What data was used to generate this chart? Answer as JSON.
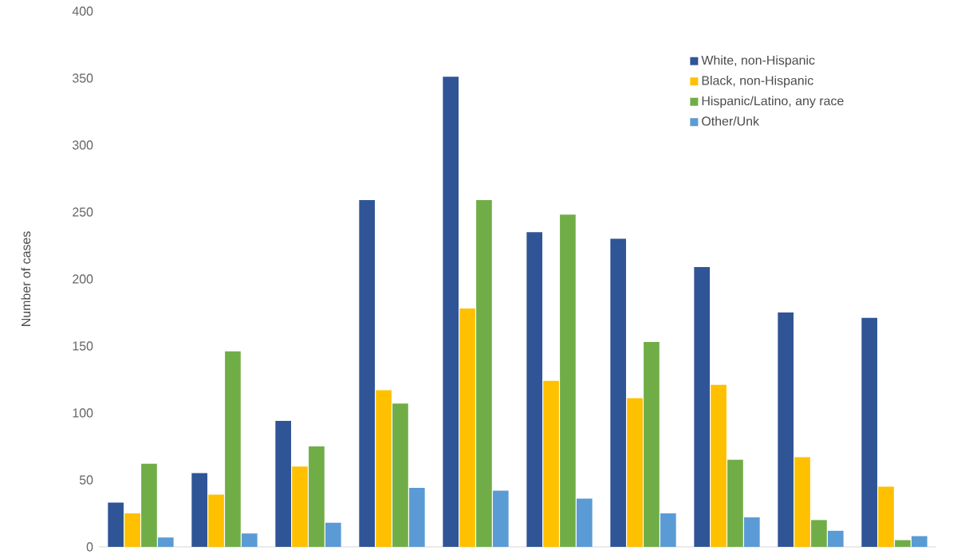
{
  "chart_data": {
    "type": "bar",
    "ylabel": "Number of cases",
    "categories": [
      null,
      null,
      null,
      null,
      null,
      null,
      null,
      null,
      null,
      null
    ],
    "series": [
      {
        "name": "White, non-Hispanic",
        "color": "#2f5597",
        "values": [
          33,
          55,
          94,
          259,
          351,
          235,
          230,
          209,
          175,
          171
        ]
      },
      {
        "name": "Black, non-Hispanic",
        "color": "#ffc000",
        "values": [
          25,
          39,
          60,
          117,
          178,
          124,
          111,
          121,
          67,
          45
        ]
      },
      {
        "name": "Hispanic/Latino, any race",
        "color": "#70ad47",
        "values": [
          62,
          146,
          75,
          107,
          259,
          248,
          153,
          65,
          20,
          5
        ]
      },
      {
        "name": "Other/Unk",
        "color": "#5b9bd5",
        "values": [
          7,
          10,
          18,
          44,
          42,
          36,
          25,
          22,
          12,
          8
        ]
      }
    ],
    "ylim": [
      0,
      400
    ],
    "yticks": [
      0,
      50,
      100,
      150,
      200,
      250,
      300,
      350,
      400
    ],
    "grid": false,
    "legend": "top right"
  }
}
